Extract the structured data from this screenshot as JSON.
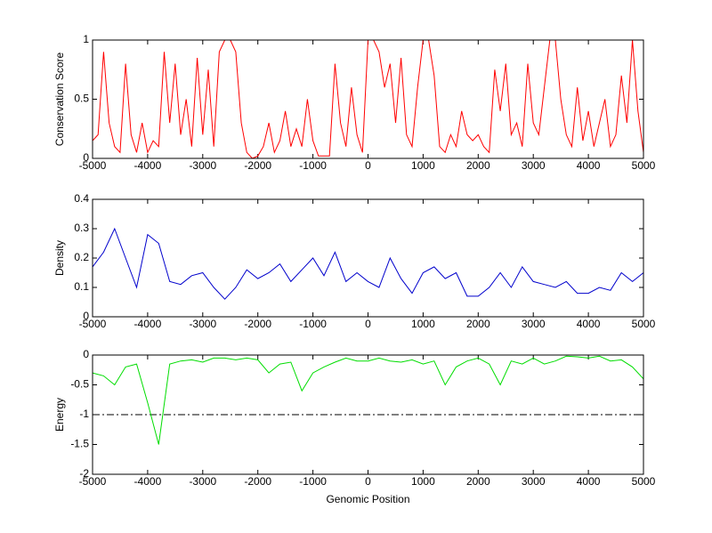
{
  "chart_data": [
    {
      "type": "line",
      "ylabel": "Conservation Score",
      "x": [
        -5000,
        -4900,
        -4800,
        -4700,
        -4600,
        -4500,
        -4400,
        -4300,
        -4200,
        -4100,
        -4000,
        -3900,
        -3800,
        -3700,
        -3600,
        -3500,
        -3400,
        -3300,
        -3200,
        -3100,
        -3000,
        -2900,
        -2800,
        -2700,
        -2600,
        -2500,
        -2400,
        -2300,
        -2200,
        -2100,
        -2000,
        -1900,
        -1800,
        -1700,
        -1600,
        -1500,
        -1400,
        -1300,
        -1200,
        -1100,
        -1000,
        -900,
        -800,
        -700,
        -600,
        -500,
        -400,
        -300,
        -200,
        -100,
        0,
        100,
        200,
        300,
        400,
        500,
        600,
        700,
        800,
        900,
        1000,
        1100,
        1200,
        1300,
        1400,
        1500,
        1600,
        1700,
        1800,
        1900,
        2000,
        2100,
        2200,
        2300,
        2400,
        2500,
        2600,
        2700,
        2800,
        2900,
        3000,
        3100,
        3200,
        3300,
        3400,
        3500,
        3600,
        3700,
        3800,
        3900,
        4000,
        4100,
        4200,
        4300,
        4400,
        4500,
        4600,
        4700,
        4800,
        4900,
        5000
      ],
      "series": [
        {
          "color": "#ff0000",
          "values": [
            0.15,
            0.2,
            0.9,
            0.3,
            0.1,
            0.05,
            0.8,
            0.2,
            0.05,
            0.3,
            0.05,
            0.15,
            0.1,
            0.9,
            0.3,
            0.8,
            0.2,
            0.5,
            0.1,
            0.85,
            0.2,
            0.75,
            0.1,
            0.9,
            1,
            1,
            0.9,
            0.3,
            0.05,
            0,
            0.02,
            0.1,
            0.3,
            0.05,
            0.15,
            0.4,
            0.1,
            0.25,
            0.1,
            0.5,
            0.15,
            0.02,
            0.02,
            0.02,
            0.8,
            0.3,
            0.1,
            0.6,
            0.2,
            0.05,
            1,
            1,
            0.9,
            0.6,
            0.8,
            0.3,
            0.85,
            0.2,
            0.1,
            0.6,
            1,
            1,
            0.7,
            0.1,
            0.05,
            0.2,
            0.1,
            0.4,
            0.2,
            0.15,
            0.2,
            0.1,
            0.05,
            0.75,
            0.4,
            0.8,
            0.2,
            0.3,
            0.1,
            0.8,
            0.3,
            0.2,
            0.6,
            1,
            1,
            0.5,
            0.2,
            0.1,
            0.6,
            0.15,
            0.4,
            0.1,
            0.3,
            0.5,
            0.1,
            0.2,
            0.7,
            0.3,
            1,
            0.4,
            0.05
          ]
        }
      ],
      "xlim": [
        -5000,
        5000
      ],
      "xticks": [
        -5000,
        -4000,
        -3000,
        -2000,
        -1000,
        0,
        1000,
        2000,
        3000,
        4000,
        5000
      ],
      "ylim": [
        0,
        1
      ],
      "yticks": [
        0,
        0.5,
        1
      ]
    },
    {
      "type": "line",
      "ylabel": "Density",
      "x": [
        -5000,
        -4800,
        -4600,
        -4400,
        -4200,
        -4000,
        -3800,
        -3600,
        -3400,
        -3200,
        -3000,
        -2800,
        -2600,
        -2400,
        -2200,
        -2000,
        -1800,
        -1600,
        -1400,
        -1200,
        -1000,
        -800,
        -600,
        -400,
        -200,
        0,
        200,
        400,
        600,
        800,
        1000,
        1200,
        1400,
        1600,
        1800,
        2000,
        2200,
        2400,
        2600,
        2800,
        3000,
        3200,
        3400,
        3600,
        3800,
        4000,
        4200,
        4400,
        4600,
        4800,
        5000
      ],
      "series": [
        {
          "color": "#0000cc",
          "values": [
            0.17,
            0.22,
            0.3,
            0.2,
            0.1,
            0.28,
            0.25,
            0.12,
            0.11,
            0.14,
            0.15,
            0.1,
            0.06,
            0.1,
            0.16,
            0.13,
            0.15,
            0.18,
            0.12,
            0.16,
            0.2,
            0.14,
            0.22,
            0.12,
            0.15,
            0.12,
            0.1,
            0.2,
            0.13,
            0.08,
            0.15,
            0.17,
            0.13,
            0.15,
            0.07,
            0.07,
            0.1,
            0.15,
            0.1,
            0.17,
            0.12,
            0.11,
            0.1,
            0.12,
            0.08,
            0.08,
            0.1,
            0.09,
            0.15,
            0.12,
            0.15
          ]
        }
      ],
      "xlim": [
        -5000,
        5000
      ],
      "xticks": [
        -5000,
        -4000,
        -3000,
        -2000,
        -1000,
        0,
        1000,
        2000,
        3000,
        4000,
        5000
      ],
      "ylim": [
        0,
        0.4
      ],
      "yticks": [
        0,
        0.1,
        0.2,
        0.3,
        0.4
      ]
    },
    {
      "type": "line",
      "ylabel": "Energy",
      "xlabel": "Genomic Position",
      "x": [
        -5000,
        -4800,
        -4600,
        -4400,
        -4200,
        -4000,
        -3800,
        -3600,
        -3400,
        -3200,
        -3000,
        -2800,
        -2600,
        -2400,
        -2200,
        -2000,
        -1800,
        -1600,
        -1400,
        -1200,
        -1000,
        -800,
        -600,
        -400,
        -200,
        0,
        200,
        400,
        600,
        800,
        1000,
        1200,
        1400,
        1600,
        1800,
        2000,
        2200,
        2400,
        2600,
        2800,
        3000,
        3200,
        3400,
        3600,
        3800,
        4000,
        4200,
        4400,
        4600,
        4800,
        5000
      ],
      "series": [
        {
          "color": "#00dd00",
          "values": [
            -0.3,
            -0.35,
            -0.5,
            -0.2,
            -0.15,
            -0.8,
            -1.5,
            -0.15,
            -0.1,
            -0.08,
            -0.12,
            -0.05,
            -0.05,
            -0.08,
            -0.05,
            -0.08,
            -0.3,
            -0.15,
            -0.12,
            -0.6,
            -0.3,
            -0.2,
            -0.12,
            -0.05,
            -0.1,
            -0.1,
            -0.05,
            -0.1,
            -0.12,
            -0.08,
            -0.15,
            -0.1,
            -0.5,
            -0.2,
            -0.1,
            -0.05,
            -0.15,
            -0.5,
            -0.1,
            -0.15,
            -0.05,
            -0.15,
            -0.1,
            -0.02,
            -0.03,
            -0.05,
            -0.02,
            -0.1,
            -0.08,
            -0.2,
            -0.4
          ]
        }
      ],
      "hline": -1,
      "hline_style": "dashdot",
      "xlim": [
        -5000,
        5000
      ],
      "xticks": [
        -5000,
        -4000,
        -3000,
        -2000,
        -1000,
        0,
        1000,
        2000,
        3000,
        4000,
        5000
      ],
      "ylim": [
        -2,
        0
      ],
      "yticks": [
        -2,
        -1.5,
        -1,
        -0.5,
        0
      ]
    }
  ]
}
